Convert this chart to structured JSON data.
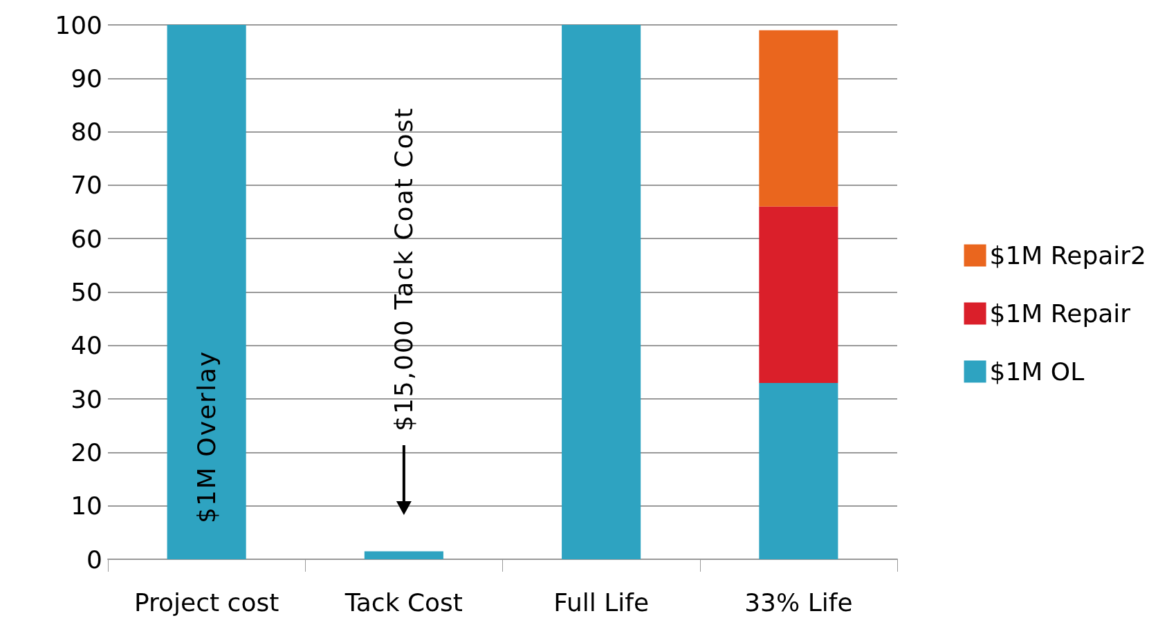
{
  "chart_data": {
    "type": "bar",
    "stacked": true,
    "categories": [
      "Project cost",
      "Tack Cost",
      "Full Life",
      "33% Life"
    ],
    "series": [
      {
        "name": "$1M OL",
        "color": "#2ea3c1",
        "values": [
          100,
          1.5,
          100,
          33
        ]
      },
      {
        "name": "$1M Repair",
        "color": "#da1f2a",
        "values": [
          null,
          null,
          null,
          33
        ]
      },
      {
        "name": "$1M Repair2",
        "color": "#ea661e",
        "values": [
          null,
          null,
          null,
          33
        ]
      }
    ],
    "ylim": [
      0,
      100
    ],
    "yticks": [
      0,
      10,
      20,
      30,
      40,
      50,
      60,
      70,
      80,
      90,
      100
    ],
    "grid": "y",
    "legend": "right",
    "annotations": [
      "$1M Overlay",
      "$15,000 Tack Coat Cost"
    ]
  }
}
